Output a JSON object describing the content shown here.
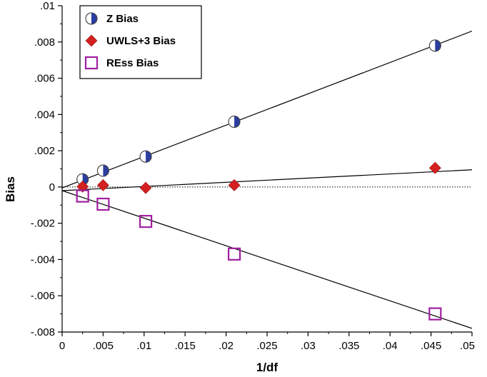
{
  "chart_data": {
    "type": "scatter",
    "xlabel": "1/df",
    "ylabel": "Bias",
    "xlim": [
      0,
      0.05
    ],
    "ylim": [
      -0.008,
      0.01
    ],
    "x_ticks": [
      0,
      0.005,
      0.01,
      0.015,
      0.02,
      0.025,
      0.03,
      0.035,
      0.04,
      0.045,
      0.05
    ],
    "x_tick_labels": [
      "0",
      ".005",
      ".01",
      ".015",
      ".02",
      ".025",
      ".03",
      ".035",
      ".04",
      ".045",
      ".05"
    ],
    "y_ticks": [
      -0.008,
      -0.006,
      -0.004,
      -0.002,
      0,
      0.002,
      0.004,
      0.006,
      0.008,
      0.01
    ],
    "y_tick_labels": [
      "-.008",
      "-.006",
      "-.004",
      "-.002",
      "0",
      ".002",
      ".004",
      ".006",
      ".008",
      ".01"
    ],
    "legend_position": "top-left",
    "zero_reference_line": true,
    "series": [
      {
        "name": "Z Bias",
        "marker": "half-filled-circle",
        "color": "#2b3d9e",
        "x": [
          0.0025,
          0.005,
          0.0102,
          0.021,
          0.0455
        ],
        "y": [
          0.00042,
          0.0009,
          0.00168,
          0.0036,
          0.0078
        ],
        "fit_line": {
          "x": [
            0,
            0.05
          ],
          "y": [
            -5e-05,
            0.0086
          ]
        }
      },
      {
        "name": "UWLS+3 Bias",
        "marker": "diamond",
        "color": "#d42020",
        "x": [
          0.0025,
          0.005,
          0.0102,
          0.021,
          0.0455
        ],
        "y": [
          2e-05,
          0.0001,
          -5e-05,
          0.0001,
          0.00105
        ],
        "fit_line": {
          "x": [
            0,
            0.05
          ],
          "y": [
            -0.0002,
            0.00095
          ]
        }
      },
      {
        "name": "REss Bias",
        "marker": "open-square",
        "color": "#a01fa0",
        "x": [
          0.0025,
          0.005,
          0.0102,
          0.021,
          0.0455
        ],
        "y": [
          -0.0005,
          -0.00095,
          -0.0019,
          -0.0037,
          -0.007
        ],
        "fit_line": {
          "x": [
            0,
            0.05
          ],
          "y": [
            -0.0002,
            -0.0078
          ]
        }
      }
    ]
  }
}
